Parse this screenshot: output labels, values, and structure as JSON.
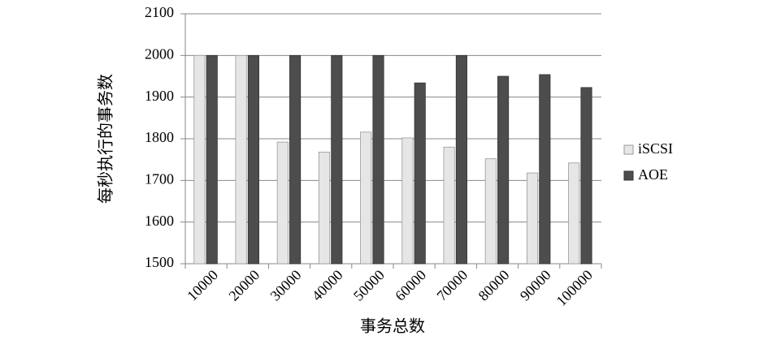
{
  "chart_data": {
    "type": "bar",
    "x_label": "事务总数",
    "y_label": "每秒执行的事务数",
    "categories": [
      "10000",
      "20000",
      "30000",
      "40000",
      "50000",
      "60000",
      "70000",
      "80000",
      "90000",
      "100000"
    ],
    "series": [
      {
        "name": "iSCSI",
        "color": "#e6e6e6",
        "values": [
          2000,
          2000,
          1792,
          1768,
          1816,
          1802,
          1780,
          1752,
          1718,
          1742
        ]
      },
      {
        "name": "AOE",
        "color": "#4d4d4d",
        "values": [
          2000,
          2000,
          2000,
          2000,
          2000,
          1934,
          2000,
          1950,
          1954,
          1923
        ]
      }
    ],
    "ylim": [
      1500,
      2100
    ],
    "yticks": [
      1500,
      1600,
      1700,
      1800,
      1900,
      2000,
      2100
    ],
    "grid": true,
    "legend": "right"
  }
}
